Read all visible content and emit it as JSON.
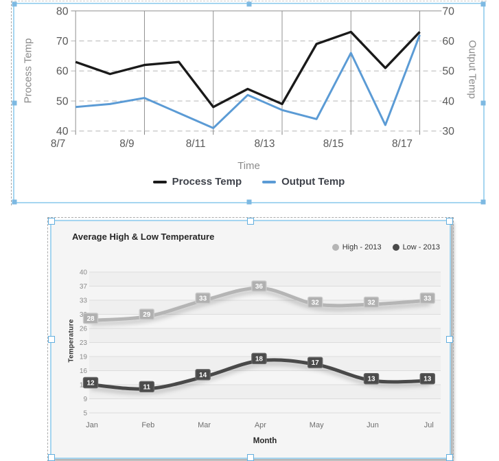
{
  "canvas": {
    "description": "report designer canvas with two selected chart widgets"
  },
  "colors": {
    "selection_border": "#a5d5f0",
    "selection_handle": "#7db9e2",
    "widget2_handle_fill": "#ffffff",
    "card_background": "#f5f5f5",
    "page_background": "#ffffff"
  },
  "chart_data": [
    {
      "name": "process-output-temp-chart",
      "type": "line",
      "x": [
        "8/7",
        "8/8",
        "8/9",
        "8/10",
        "8/11",
        "8/12",
        "8/13",
        "8/14",
        "8/15",
        "8/16",
        "8/17"
      ],
      "x_axis": {
        "title": "Time",
        "tick_labels": [
          "8/7",
          "8/9",
          "8/11",
          "8/13",
          "8/15",
          "8/17"
        ]
      },
      "left_axis": {
        "title": "Process Temp",
        "ticks": [
          80,
          70,
          60,
          50,
          40
        ],
        "range": [
          40,
          80
        ]
      },
      "right_axis": {
        "title": "Output Temp",
        "ticks": [
          70,
          60,
          50,
          40,
          30
        ],
        "range": [
          30,
          70
        ]
      },
      "series": [
        {
          "name": "Process Temp",
          "axis": "left",
          "color": "#1a1a1a",
          "values": [
            63,
            59,
            62,
            63,
            48,
            54,
            49,
            69,
            73,
            61,
            73
          ]
        },
        {
          "name": "Output Temp",
          "axis": "right",
          "color": "#5b9bd5",
          "values": [
            38,
            39,
            41,
            36,
            31,
            42,
            37,
            34,
            56,
            32,
            62
          ]
        }
      ],
      "legend_position": "bottom",
      "grid": true
    },
    {
      "name": "avg-high-low-temperature-chart",
      "type": "line",
      "title": "Average High & Low Temperature",
      "categories": [
        "Jan",
        "Feb",
        "Mar",
        "Apr",
        "May",
        "Jun",
        "Jul"
      ],
      "x_axis": {
        "title": "Month"
      },
      "y_axis": {
        "title": "Temperature",
        "ticks": [
          40,
          37,
          33,
          30,
          26,
          23,
          19,
          16,
          12,
          9,
          5
        ],
        "range": [
          5,
          40
        ]
      },
      "series": [
        {
          "name": "High - 2013",
          "color": "#b5b5b5",
          "badge_fill": "#b0b0b0",
          "badge_stroke": "#cbcbcb",
          "values": [
            28,
            29,
            33,
            36,
            32,
            32,
            33
          ]
        },
        {
          "name": "Low - 2013",
          "color": "#4a4a4a",
          "badge_fill": "#4b4b4b",
          "badge_stroke": "#646464",
          "values": [
            12,
            11,
            14,
            18,
            17,
            13,
            13
          ]
        }
      ],
      "data_labels": true,
      "legend_position": "top-right",
      "smooth": true
    }
  ]
}
